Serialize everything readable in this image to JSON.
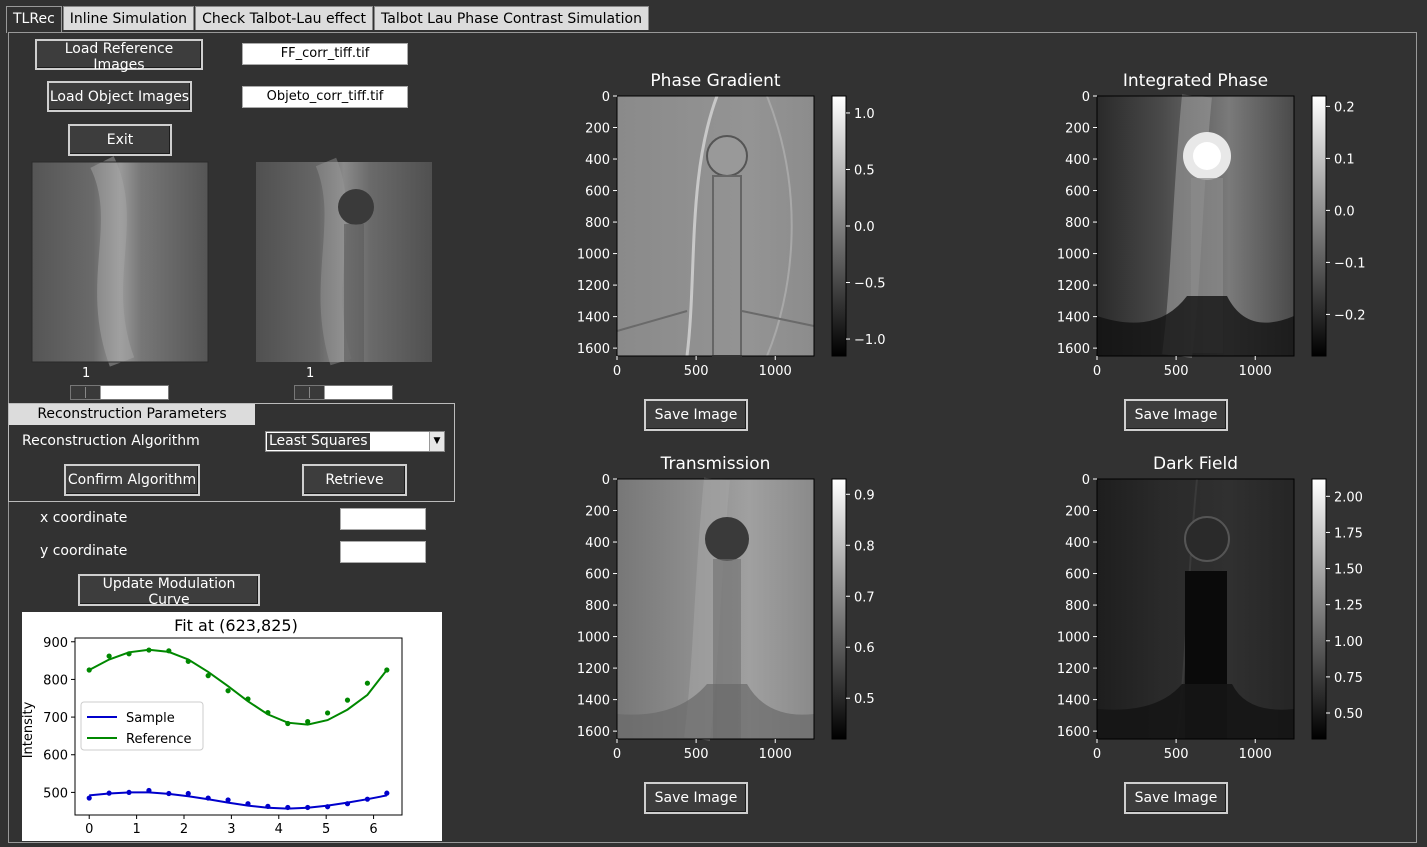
{
  "tabs": [
    {
      "label": "TLRec"
    },
    {
      "label": "Inline Simulation"
    },
    {
      "label": "Check Talbot-Lau effect"
    },
    {
      "label": "Talbot Lau Phase Contrast Simulation"
    }
  ],
  "controls": {
    "load_reference_label": "Load Reference Images",
    "load_object_label": "Load Object Images",
    "exit_label": "Exit",
    "reference_file": "FF_corr_tiff.tif",
    "object_file": "Objeto_corr_tiff.tif",
    "reference_slider_value": "1",
    "object_slider_value": "1"
  },
  "reconstruction": {
    "group_title": "Reconstruction Parameters",
    "algorithm_label": "Reconstruction Algorithm",
    "algorithm_value": "Least Squares",
    "confirm_label": "Confirm Algorithm",
    "retrieve_label": "Retrieve"
  },
  "coordinates": {
    "x_label": "x coordinate",
    "y_label": "y coordinate",
    "x_value": "",
    "y_value": "",
    "update_label": "Update Modulation Curve"
  },
  "images": [
    {
      "title": "Phase Gradient",
      "save_label": "Save Image",
      "colorbar_ticks": [
        "1.0",
        "0.5",
        "0.0",
        "−0.5",
        "−1.0"
      ],
      "colorbar_range": [
        -1.15,
        1.15
      ]
    },
    {
      "title": "Integrated Phase",
      "save_label": "Save Image",
      "colorbar_ticks": [
        "0.2",
        "0.1",
        "0.0",
        "−0.1",
        "−0.2"
      ],
      "colorbar_range": [
        -0.28,
        0.22
      ]
    },
    {
      "title": "Transmission",
      "save_label": "Save Image",
      "colorbar_ticks": [
        "0.9",
        "0.8",
        "0.7",
        "0.6",
        "0.5"
      ],
      "colorbar_range": [
        0.42,
        0.93
      ]
    },
    {
      "title": "Dark Field",
      "save_label": "Save Image",
      "colorbar_ticks": [
        "2.00",
        "1.75",
        "1.50",
        "1.25",
        "1.00",
        "0.75",
        "0.50"
      ],
      "colorbar_range": [
        0.32,
        2.12
      ]
    }
  ],
  "image_axes": {
    "y_ticks": [
      "0",
      "200",
      "400",
      "600",
      "800",
      "1000",
      "1200",
      "1400",
      "1600"
    ],
    "x_ticks": [
      "0",
      "500",
      "1000"
    ]
  },
  "chart_data": {
    "type": "line",
    "title": "Fit at (623,825)",
    "xlabel": "",
    "ylabel": "Intensity",
    "xlim": [
      -0.3,
      6.6
    ],
    "ylim": [
      440,
      910
    ],
    "x_ticks": [
      "0",
      "1",
      "2",
      "3",
      "4",
      "5",
      "6"
    ],
    "y_ticks": [
      "500",
      "600",
      "700",
      "800",
      "900"
    ],
    "legend": "center-left",
    "series": [
      {
        "name": "Sample",
        "color": "#0000cc",
        "x": [
          0,
          0.42,
          0.84,
          1.26,
          1.68,
          2.09,
          2.51,
          2.93,
          3.35,
          3.77,
          4.19,
          4.61,
          5.03,
          5.45,
          5.87,
          6.28
        ],
        "points": [
          485,
          498,
          500,
          505,
          497,
          497,
          485,
          480,
          470,
          463,
          460,
          460,
          462,
          470,
          482,
          498
        ],
        "fit": [
          492,
          497,
          500,
          500,
          496,
          490,
          482,
          473,
          465,
          459,
          457,
          459,
          465,
          473,
          482,
          492
        ]
      },
      {
        "name": "Reference",
        "color": "#008800",
        "x": [
          0,
          0.42,
          0.84,
          1.26,
          1.68,
          2.09,
          2.51,
          2.93,
          3.35,
          3.77,
          4.19,
          4.61,
          5.03,
          5.45,
          5.87,
          6.28
        ],
        "points": [
          825,
          862,
          868,
          878,
          876,
          848,
          810,
          770,
          748,
          712,
          683,
          688,
          711,
          745,
          790,
          825
        ],
        "fit": [
          825,
          853,
          872,
          879,
          873,
          853,
          820,
          782,
          742,
          707,
          685,
          680,
          692,
          720,
          759,
          825
        ]
      }
    ]
  }
}
